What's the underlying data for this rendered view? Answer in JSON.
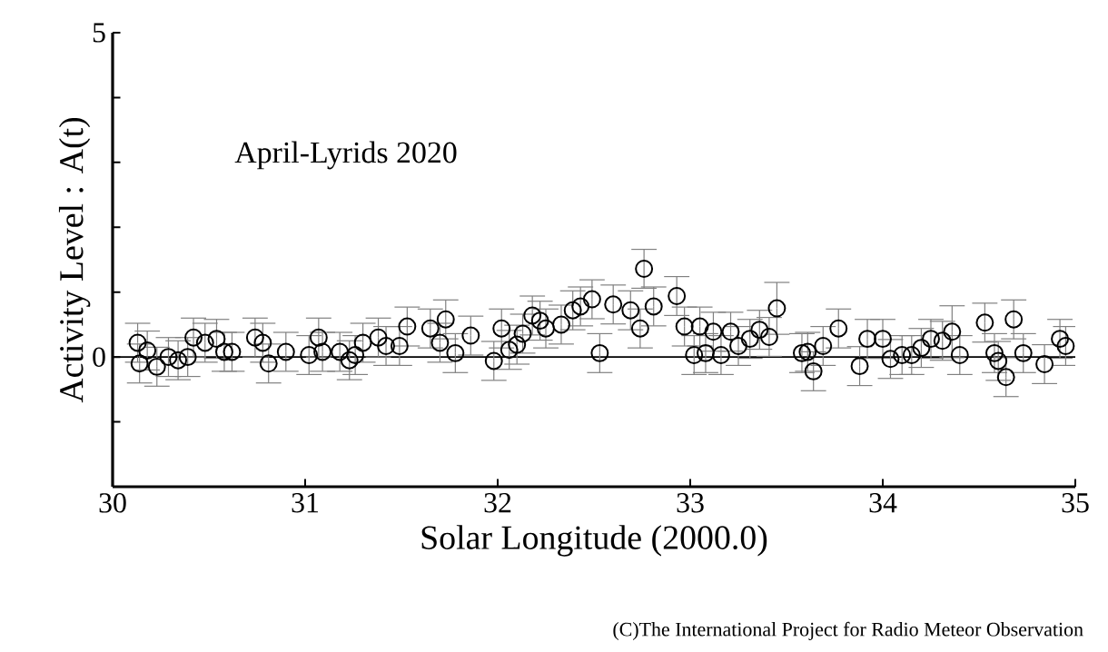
{
  "chart_data": {
    "type": "scatter",
    "title": "April-Lyrids 2020",
    "xlabel": "Solar Longitude (2000.0)",
    "ylabel": "Activity Level : A(t)",
    "annotations": [
      "(C)The International Project for Radio Meteor Observation"
    ],
    "x": [
      30.13,
      30.14,
      30.18,
      30.23,
      30.29,
      30.34,
      30.39,
      30.42,
      30.48,
      30.54,
      30.58,
      30.62,
      30.74,
      30.78,
      30.81,
      30.9,
      31.02,
      31.07,
      31.09,
      31.18,
      31.23,
      31.26,
      31.3,
      31.38,
      31.42,
      31.49,
      31.53,
      31.65,
      31.7,
      31.73,
      31.78,
      31.86,
      31.98,
      32.02,
      32.06,
      32.1,
      32.13,
      32.18,
      32.22,
      32.25,
      32.33,
      32.39,
      32.43,
      32.49,
      32.53,
      32.6,
      32.69,
      32.74,
      32.76,
      32.81,
      32.93,
      32.97,
      33.02,
      33.05,
      33.08,
      33.12,
      33.16,
      33.21,
      33.25,
      33.31,
      33.36,
      33.41,
      33.45,
      33.58,
      33.61,
      33.64,
      33.69,
      33.77,
      33.88,
      33.92,
      34.0,
      34.04,
      34.1,
      34.15,
      34.2,
      34.25,
      34.31,
      34.36,
      34.4,
      34.53,
      34.58,
      34.6,
      34.64,
      34.68,
      34.73,
      34.84,
      34.92,
      34.95
    ],
    "values": [
      0.22,
      -0.1,
      0.1,
      -0.15,
      0.0,
      -0.05,
      0.0,
      0.3,
      0.22,
      0.28,
      0.08,
      0.08,
      0.3,
      0.22,
      -0.1,
      0.08,
      0.03,
      0.3,
      0.08,
      0.08,
      -0.05,
      0.03,
      0.22,
      0.3,
      0.17,
      0.17,
      0.47,
      0.44,
      0.22,
      0.58,
      0.06,
      0.33,
      -0.06,
      0.44,
      0.11,
      0.19,
      0.36,
      0.64,
      0.56,
      0.44,
      0.5,
      0.72,
      0.78,
      0.89,
      0.06,
      0.81,
      0.72,
      0.44,
      1.36,
      0.78,
      0.94,
      0.47,
      0.03,
      0.47,
      0.06,
      0.39,
      0.03,
      0.39,
      0.17,
      0.28,
      0.42,
      0.31,
      0.75,
      0.06,
      0.08,
      -0.22,
      0.17,
      0.44,
      -0.14,
      0.28,
      0.28,
      -0.03,
      0.03,
      0.03,
      0.14,
      0.28,
      0.25,
      0.39,
      0.03,
      0.53,
      0.06,
      -0.06,
      -0.31,
      0.58,
      0.06,
      -0.11,
      0.28,
      0.17
    ],
    "errors": [
      0.3,
      0.3,
      0.3,
      0.3,
      0.3,
      0.3,
      0.3,
      0.3,
      0.3,
      0.3,
      0.3,
      0.3,
      0.3,
      0.3,
      0.3,
      0.3,
      0.3,
      0.3,
      0.3,
      0.3,
      0.3,
      0.3,
      0.3,
      0.3,
      0.3,
      0.3,
      0.3,
      0.3,
      0.3,
      0.3,
      0.3,
      0.3,
      0.3,
      0.3,
      0.3,
      0.3,
      0.3,
      0.3,
      0.3,
      0.3,
      0.3,
      0.3,
      0.3,
      0.3,
      0.3,
      0.3,
      0.3,
      0.3,
      0.3,
      0.3,
      0.3,
      0.3,
      0.3,
      0.3,
      0.3,
      0.3,
      0.3,
      0.3,
      0.3,
      0.3,
      0.3,
      0.3,
      0.4,
      0.3,
      0.3,
      0.3,
      0.3,
      0.3,
      0.3,
      0.3,
      0.3,
      0.3,
      0.3,
      0.3,
      0.3,
      0.3,
      0.3,
      0.4,
      0.3,
      0.3,
      0.3,
      0.3,
      0.3,
      0.3,
      0.3,
      0.3,
      0.3,
      0.3
    ],
    "color": "#000000",
    "marker": "circle",
    "xlim": [
      30,
      35
    ],
    "xticks": [
      30,
      31,
      32,
      33,
      34,
      35
    ],
    "ylim": [
      -2,
      5
    ],
    "yticks": [
      {
        "value": -1,
        "label": null
      },
      0,
      {
        "value": 1,
        "label": null
      },
      {
        "value": 2,
        "label": null
      },
      {
        "value": 3,
        "label": null
      },
      {
        "value": 4,
        "label": null
      },
      5
    ],
    "ref_lines": [
      {
        "axis": "y",
        "value": 0
      }
    ],
    "grid": false
  }
}
